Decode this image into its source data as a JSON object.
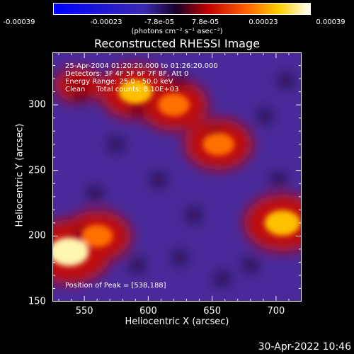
{
  "colorbar": {
    "ticks": [
      "-0.00039",
      "-0.00023",
      "-7.8e-05",
      "7.8e-05",
      "0.00023",
      "0.00039"
    ],
    "unit": "(photons cm⁻² s⁻¹ asec⁻²)",
    "min": -0.00039,
    "max": 0.00039
  },
  "chart_data": {
    "type": "heatmap",
    "title": "Reconstructed RHESSI Image",
    "xlabel": "Heliocentric X (arcsec)",
    "ylabel": "Heliocentric Y (arcsec)",
    "xlim": [
      525,
      720
    ],
    "ylim": [
      150,
      340
    ],
    "xticks": [
      550,
      600,
      650,
      700
    ],
    "yticks": [
      150,
      200,
      250,
      300
    ],
    "colormap": "blue-purple-red-orange-yellow-white",
    "peak": [
      538,
      188
    ],
    "bright_regions": [
      {
        "x": 538,
        "y": 188,
        "level": 1.0
      },
      {
        "x": 560,
        "y": 200,
        "level": 0.8
      },
      {
        "x": 590,
        "y": 310,
        "level": 0.85
      },
      {
        "x": 620,
        "y": 300,
        "level": 0.8
      },
      {
        "x": 655,
        "y": 270,
        "level": 0.8
      },
      {
        "x": 705,
        "y": 210,
        "level": 0.9
      },
      {
        "x": 545,
        "y": 315,
        "level": 0.55
      }
    ]
  },
  "info": {
    "line1": "25-Apr-2004 01:20:20.000 to 01:26:20.000",
    "line2": "Detectors: 3F 4F 5F 6F 7F 8F, Att 0",
    "line3": "Energy Range: 25.0 - 50.0 keV",
    "line4": "Clean     Total counts: 8.10E+03",
    "peak_label": "Position of Peak = [538,188]"
  },
  "timestamp": "30-Apr-2022 10:46"
}
